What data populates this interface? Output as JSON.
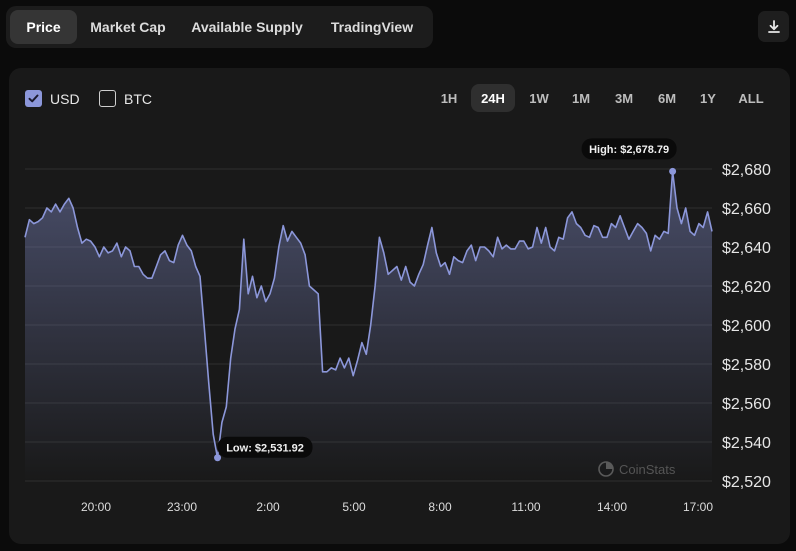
{
  "tabs": [
    {
      "label": "Price",
      "active": true
    },
    {
      "label": "Market Cap",
      "active": false
    },
    {
      "label": "Available Supply",
      "active": false
    },
    {
      "label": "TradingView",
      "active": false
    }
  ],
  "download_icon": "download-icon",
  "currencies": [
    {
      "label": "USD",
      "checked": true
    },
    {
      "label": "BTC",
      "checked": false
    }
  ],
  "ranges": [
    {
      "label": "1H",
      "active": false
    },
    {
      "label": "24H",
      "active": true
    },
    {
      "label": "1W",
      "active": false
    },
    {
      "label": "1M",
      "active": false
    },
    {
      "label": "3M",
      "active": false
    },
    {
      "label": "6M",
      "active": false
    },
    {
      "label": "1Y",
      "active": false
    },
    {
      "label": "ALL",
      "active": false
    }
  ],
  "watermark": "CoinStats",
  "colors": {
    "line": "#8c97da",
    "accent": "#8c97da",
    "card": "#191919"
  },
  "chart_data": {
    "type": "area",
    "x_ticks": [
      "20:00",
      "23:00",
      "2:00",
      "5:00",
      "8:00",
      "11:00",
      "14:00",
      "17:00"
    ],
    "y_ticks": [
      "$2,680",
      "$2,660",
      "$2,640",
      "$2,620",
      "$2,600",
      "$2,580",
      "$2,560",
      "$2,540",
      "$2,520"
    ],
    "ylim": [
      2520,
      2680
    ],
    "xlim": [
      "17:30",
      "17:30"
    ],
    "grid": true,
    "annotations": {
      "high_label": "High: $2,678.79",
      "high_value": 2678.79,
      "low_label": "Low: $2,531.92",
      "low_value": 2531.92
    },
    "series": [
      {
        "values": [
          2645,
          2654,
          2652,
          2653,
          2655,
          2660,
          2658,
          2662,
          2658,
          2662,
          2665,
          2660,
          2650,
          2642,
          2644,
          2643,
          2640,
          2635,
          2640,
          2637,
          2638,
          2642,
          2635,
          2640,
          2638,
          2630,
          2630,
          2626,
          2624,
          2624,
          2630,
          2636,
          2638,
          2633,
          2632,
          2641,
          2646,
          2641,
          2638,
          2630,
          2625,
          2598,
          2570,
          2544,
          2531.92,
          2550,
          2558,
          2583,
          2598,
          2608,
          2644,
          2616,
          2625,
          2614,
          2620,
          2612,
          2616,
          2624,
          2640,
          2651,
          2643,
          2648,
          2645,
          2642,
          2636,
          2620,
          2618,
          2616,
          2576,
          2576,
          2578,
          2577,
          2583,
          2578,
          2583,
          2574,
          2582,
          2591,
          2585,
          2600,
          2620,
          2645,
          2637,
          2626,
          2628,
          2630,
          2623,
          2630,
          2622,
          2620,
          2626,
          2631,
          2641,
          2650,
          2637,
          2630,
          2632,
          2626,
          2635,
          2633,
          2632,
          2638,
          2641,
          2633,
          2640,
          2640,
          2638,
          2635,
          2645,
          2639,
          2641,
          2639,
          2639,
          2643,
          2643,
          2639,
          2640,
          2650,
          2642,
          2650,
          2640,
          2638,
          2645,
          2644,
          2655,
          2658,
          2652,
          2650,
          2646,
          2645,
          2651,
          2650,
          2645,
          2645,
          2652,
          2650,
          2656,
          2650,
          2644,
          2648,
          2652,
          2650,
          2647,
          2638,
          2646,
          2644,
          2648,
          2647,
          2678.79,
          2660,
          2652,
          2660,
          2648,
          2646,
          2652,
          2650,
          2658,
          2648
        ]
      }
    ]
  }
}
